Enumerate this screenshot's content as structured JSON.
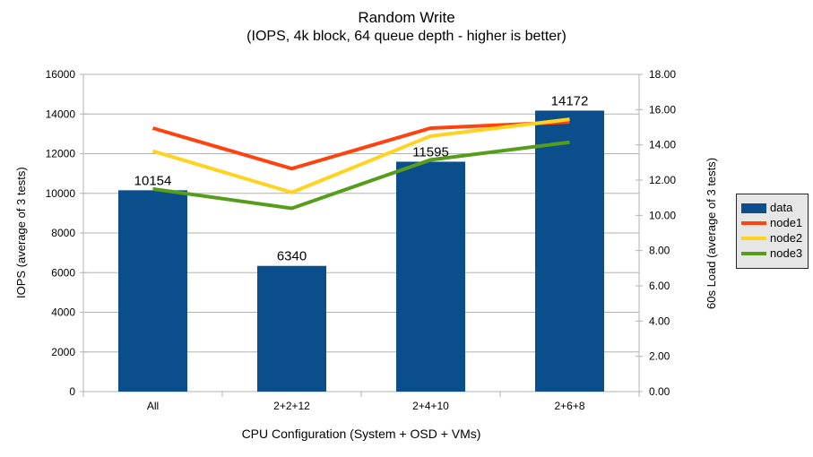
{
  "chart_data": {
    "type": "bar+line",
    "title": "Random Write",
    "subtitle": "(IOPS, 4k block, 64 queue depth - higher is better)",
    "categories": [
      "All",
      "2+2+12",
      "2+4+10",
      "2+6+8"
    ],
    "series": [
      {
        "name": "data",
        "type": "bar",
        "axis": "left",
        "color": "#0a4e8c",
        "values": [
          10154,
          6340,
          11595,
          14172
        ],
        "data_labels": [
          "10154",
          "6340",
          "11595",
          "14172"
        ]
      },
      {
        "name": "node1",
        "type": "line",
        "axis": "right",
        "color": "#ff420e",
        "values": [
          14.95,
          12.65,
          14.95,
          15.3
        ]
      },
      {
        "name": "node2",
        "type": "line",
        "axis": "right",
        "color": "#ffd320",
        "values": [
          13.65,
          11.3,
          14.5,
          15.45
        ]
      },
      {
        "name": "node3",
        "type": "line",
        "axis": "right",
        "color": "#579d1c",
        "values": [
          11.5,
          10.4,
          13.15,
          14.15
        ]
      }
    ],
    "x_axis": {
      "title": "CPU Configuration (System + OSD + VMs)"
    },
    "left_axis": {
      "title": "IOPS (average of 3 tests)",
      "min": 0,
      "max": 16000,
      "step": 2000,
      "tick_labels": [
        "0",
        "2000",
        "4000",
        "6000",
        "8000",
        "10000",
        "12000",
        "14000",
        "16000"
      ]
    },
    "right_axis": {
      "title": "60s Load (average of 3 tests)",
      "min": 0,
      "max": 18,
      "step": 2,
      "tick_labels": [
        "0.00",
        "2.00",
        "4.00",
        "6.00",
        "8.00",
        "10.00",
        "12.00",
        "14.00",
        "16.00",
        "18.00"
      ]
    },
    "legend": {
      "position": "right",
      "entries": [
        "data",
        "node1",
        "node2",
        "node3"
      ]
    },
    "grid": true,
    "colors": {
      "grid": "#b3b3b3",
      "axis": "#b3b3b3",
      "text": "#000000",
      "background": "#ffffff",
      "legend_bg": "#e6e6e6",
      "legend_border": "#262626"
    }
  }
}
